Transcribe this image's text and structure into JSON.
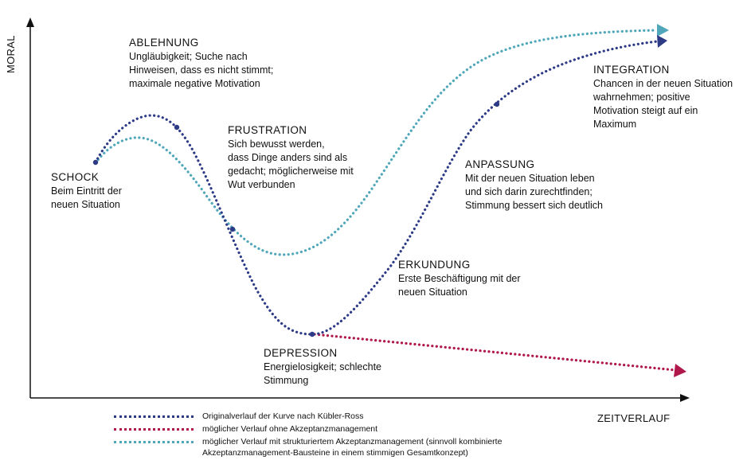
{
  "axes": {
    "y_label": "MORAL",
    "x_label": "ZEITVERLAUF"
  },
  "phases": {
    "schock": {
      "title": "SCHOCK",
      "desc": "Beim Eintritt der\nneuen Situation"
    },
    "ablehnung": {
      "title": "ABLEHNUNG",
      "desc": "Ungläubigkeit; Suche nach\nHinweisen, dass es nicht stimmt;\nmaximale negative Motivation"
    },
    "frustration": {
      "title": "FRUSTRATION",
      "desc": "Sich bewusst werden,\ndass Dinge anders sind als\ngedacht; möglicherweise mit\nWut verbunden"
    },
    "depression": {
      "title": "DEPRESSION",
      "desc": "Energielosigkeit; schlechte\nStimmung"
    },
    "erkundung": {
      "title": "ERKUNDUNG",
      "desc": "Erste Beschäftigung mit der\nneuen Situation"
    },
    "anpassung": {
      "title": "ANPASSUNG",
      "desc": "Mit der neuen Situation leben\nund sich darin zurechtfinden;\nStimmung bessert sich deutlich"
    },
    "integration": {
      "title": "INTEGRATION",
      "desc": "Chancen in der neuen Situation\nwahrnehmen; positive\nMotivation steigt auf ein\nMaximum"
    }
  },
  "colors": {
    "original": "#2d3a86",
    "without_management": "#b0174a",
    "with_management": "#4fa7b9",
    "axis": "#111111"
  },
  "legend": [
    {
      "label": "Originalverlauf der Kurve nach Kübler-Ross",
      "color": "#2d3a86"
    },
    {
      "label": "möglicher Verlauf ohne Akzeptanzmanagement",
      "color": "#b0174a"
    },
    {
      "label": "möglicher Verlauf mit strukturiertem Akzeptanzmanagement (sinnvoll kombinierte Akzeptanzmanagement-Bausteine in einem stimmigen Gesamtkonzept)",
      "color": "#4fa7b9"
    }
  ]
}
